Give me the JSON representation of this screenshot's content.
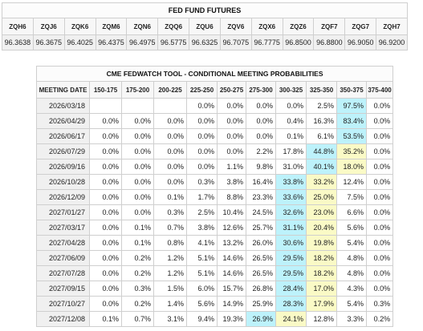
{
  "colors": {
    "max_prob": "#bdf2fb",
    "second_prob": "#fafac6",
    "date_cell": "#f0f0f0"
  },
  "futures": {
    "title": "FED FUND FUTURES",
    "contracts": [
      "ZQH6",
      "ZQJ6",
      "ZQK6",
      "ZQM6",
      "ZQN6",
      "ZQQ6",
      "ZQU6",
      "ZQV6",
      "ZQX6",
      "ZQZ6",
      "ZQF7",
      "ZQG7",
      "ZQH7"
    ],
    "prices": [
      "96.3638",
      "96.3675",
      "96.4025",
      "96.4375",
      "96.4975",
      "96.5775",
      "96.6325",
      "96.7075",
      "96.7775",
      "96.8500",
      "96.8800",
      "96.9050",
      "96.9200"
    ]
  },
  "chart_data": {
    "type": "table",
    "title": "CME FEDWATCH TOOL - CONDITIONAL MEETING PROBABILITIES",
    "row_header": "MEETING DATE",
    "columns": [
      "150-175",
      "175-200",
      "200-225",
      "225-250",
      "250-275",
      "275-300",
      "300-325",
      "325-350",
      "350-375",
      "375-400"
    ],
    "rows": [
      {
        "date": "2026/03/18",
        "values": [
          "",
          "",
          "",
          "0.0%",
          "0.0%",
          "0.0%",
          "0.0%",
          "2.5%",
          "97.5%",
          "0.0%"
        ],
        "max": 8,
        "second": null
      },
      {
        "date": "2026/04/29",
        "values": [
          "0.0%",
          "0.0%",
          "0.0%",
          "0.0%",
          "0.0%",
          "0.0%",
          "0.4%",
          "16.3%",
          "83.4%",
          "0.0%"
        ],
        "max": 8,
        "second": null
      },
      {
        "date": "2026/06/17",
        "values": [
          "0.0%",
          "0.0%",
          "0.0%",
          "0.0%",
          "0.0%",
          "0.0%",
          "0.1%",
          "6.1%",
          "53.5%",
          "0.0%"
        ],
        "max": 8,
        "second": null
      },
      {
        "date": "2026/07/29",
        "values": [
          "0.0%",
          "0.0%",
          "0.0%",
          "0.0%",
          "0.0%",
          "2.2%",
          "17.8%",
          "44.8%",
          "35.2%",
          "0.0%"
        ],
        "max": 7,
        "second": 8
      },
      {
        "date": "2026/09/16",
        "values": [
          "0.0%",
          "0.0%",
          "0.0%",
          "0.0%",
          "1.1%",
          "9.8%",
          "31.0%",
          "40.1%",
          "18.0%",
          "0.0%"
        ],
        "max": 7,
        "second": 8
      },
      {
        "date": "2026/10/28",
        "values": [
          "0.0%",
          "0.0%",
          "0.0%",
          "0.3%",
          "3.8%",
          "16.4%",
          "33.8%",
          "33.2%",
          "12.4%",
          "0.0%"
        ],
        "max": 6,
        "second": 7
      },
      {
        "date": "2026/12/09",
        "values": [
          "0.0%",
          "0.0%",
          "0.1%",
          "1.7%",
          "8.8%",
          "23.3%",
          "33.6%",
          "25.0%",
          "7.5%",
          "0.0%"
        ],
        "max": 6,
        "second": 7
      },
      {
        "date": "2027/01/27",
        "values": [
          "0.0%",
          "0.0%",
          "0.3%",
          "2.5%",
          "10.4%",
          "24.5%",
          "32.6%",
          "23.0%",
          "6.6%",
          "0.0%"
        ],
        "max": 6,
        "second": 7
      },
      {
        "date": "2027/03/17",
        "values": [
          "0.0%",
          "0.1%",
          "0.7%",
          "3.8%",
          "12.6%",
          "25.7%",
          "31.1%",
          "20.4%",
          "5.6%",
          "0.0%"
        ],
        "max": 6,
        "second": 7
      },
      {
        "date": "2027/04/28",
        "values": [
          "0.0%",
          "0.1%",
          "0.8%",
          "4.1%",
          "13.2%",
          "26.0%",
          "30.6%",
          "19.8%",
          "5.4%",
          "0.0%"
        ],
        "max": 6,
        "second": 7
      },
      {
        "date": "2027/06/09",
        "values": [
          "0.0%",
          "0.2%",
          "1.2%",
          "5.1%",
          "14.6%",
          "26.5%",
          "29.5%",
          "18.2%",
          "4.8%",
          "0.0%"
        ],
        "max": 6,
        "second": 7
      },
      {
        "date": "2027/07/28",
        "values": [
          "0.0%",
          "0.2%",
          "1.2%",
          "5.1%",
          "14.6%",
          "26.5%",
          "29.5%",
          "18.2%",
          "4.8%",
          "0.0%"
        ],
        "max": 6,
        "second": 7
      },
      {
        "date": "2027/09/15",
        "values": [
          "0.0%",
          "0.3%",
          "1.5%",
          "6.0%",
          "15.7%",
          "26.8%",
          "28.4%",
          "17.0%",
          "4.3%",
          "0.0%"
        ],
        "max": 6,
        "second": 7
      },
      {
        "date": "2027/10/27",
        "values": [
          "0.0%",
          "0.2%",
          "1.4%",
          "5.6%",
          "14.9%",
          "25.9%",
          "28.3%",
          "17.9%",
          "5.4%",
          "0.3%"
        ],
        "max": 6,
        "second": 7
      },
      {
        "date": "2027/12/08",
        "values": [
          "0.1%",
          "0.7%",
          "3.1%",
          "9.4%",
          "19.3%",
          "26.9%",
          "24.1%",
          "12.8%",
          "3.3%",
          "0.2%"
        ],
        "max": 5,
        "second": 6
      }
    ]
  }
}
